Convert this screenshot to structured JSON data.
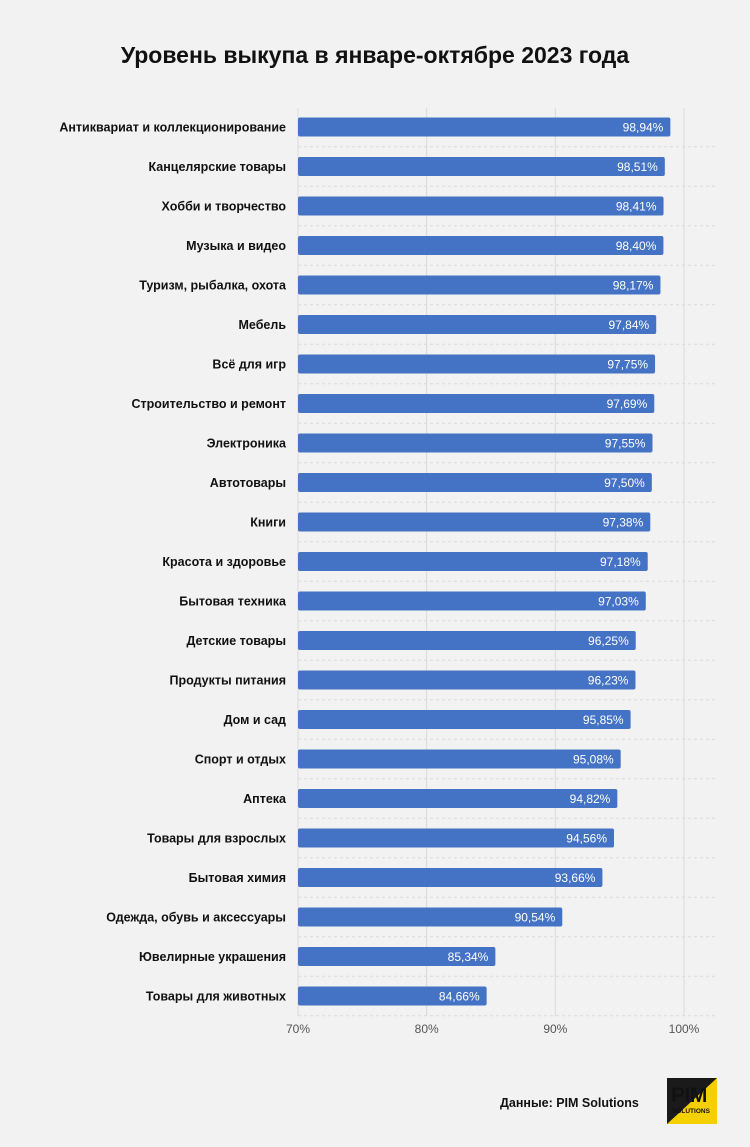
{
  "chart_data": {
    "type": "bar",
    "orientation": "horizontal",
    "title": "Уровень выкупа в январе-октябре 2023 года",
    "categories": [
      "Антиквариат и коллекционирование",
      "Канцелярские товары",
      "Хобби и творчество",
      "Музыка и видео",
      "Туризм, рыбалка, охота",
      "Мебель",
      "Всё для игр",
      "Строительство и ремонт",
      "Электроника",
      "Автотовары",
      "Книги",
      "Красота и здоровье",
      "Бытовая техника",
      "Детские товары",
      "Продукты питания",
      "Дом и сад",
      "Спорт и отдых",
      "Аптека",
      "Товары для взрослых",
      "Бытовая химия",
      "Одежда, обувь и аксессуары",
      "Ювелирные украшения",
      "Товары для животных"
    ],
    "values": [
      98.94,
      98.51,
      98.41,
      98.4,
      98.17,
      97.84,
      97.75,
      97.69,
      97.55,
      97.5,
      97.38,
      97.18,
      97.03,
      96.25,
      96.23,
      95.85,
      95.08,
      94.82,
      94.56,
      93.66,
      90.54,
      85.34,
      84.66
    ],
    "value_labels": [
      "98,94%",
      "98,51%",
      "98,41%",
      "98,40%",
      "98,17%",
      "97,84%",
      "97,75%",
      "97,69%",
      "97,55%",
      "97,50%",
      "97,38%",
      "97,18%",
      "97,03%",
      "96,25%",
      "96,23%",
      "95,85%",
      "95,08%",
      "94,82%",
      "94,56%",
      "93,66%",
      "90,54%",
      "85,34%",
      "84,66%"
    ],
    "xlim": [
      70,
      100
    ],
    "ticks": [
      70,
      80,
      90,
      100
    ],
    "tick_labels": [
      "70%",
      "80%",
      "90%",
      "100%"
    ],
    "grid": true,
    "bar_color": "#4472c4"
  },
  "source": "Данные: PIM Solutions",
  "logo": {
    "main": "PIM",
    "sub": "SOLUTIONS"
  }
}
